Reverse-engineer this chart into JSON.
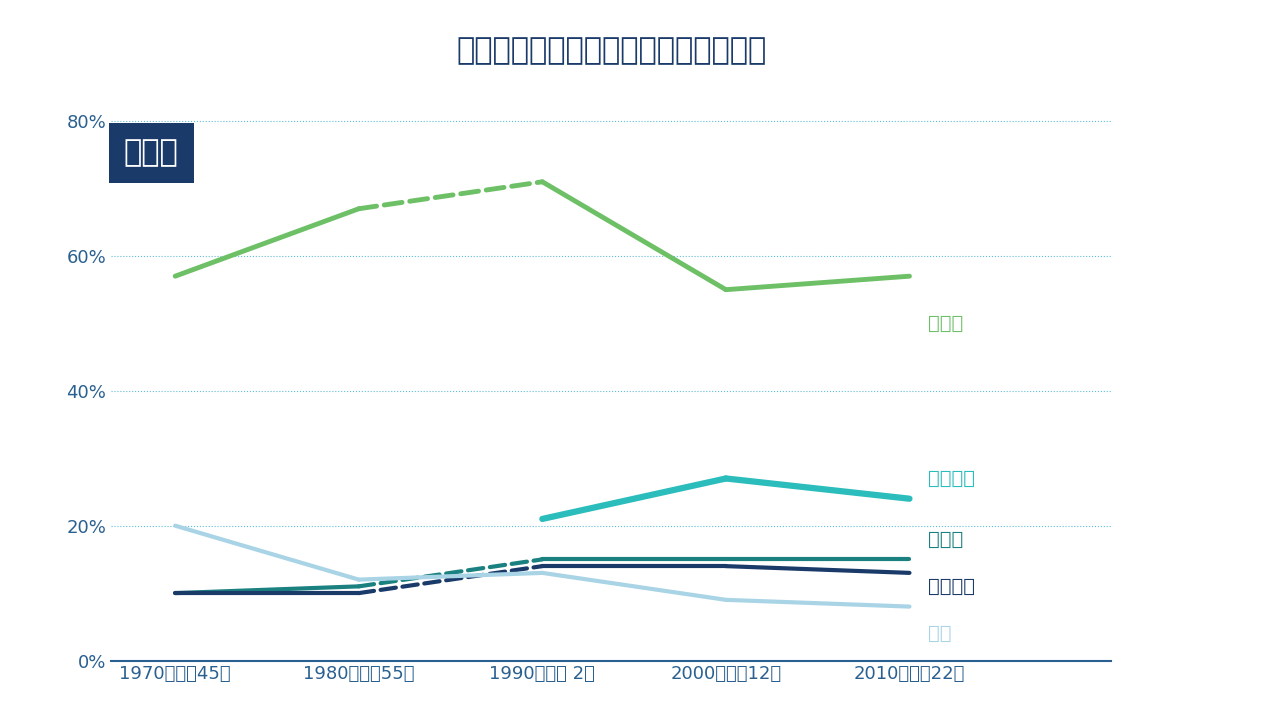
{
  "title": "通勤・通学の利用交通手段別人口割合",
  "subtitle_box": "東京都",
  "x_labels": [
    "1970（昭和45）",
    "1980（昭和55）",
    "1990（平成 2）",
    "2000（平成12）",
    "2010（平成22）"
  ],
  "x_positions": [
    0,
    1,
    2,
    3,
    4
  ],
  "series": [
    {
      "name": "鉄道等",
      "values": [
        57,
        67,
        71,
        55,
        57
      ],
      "color": "#6dc066",
      "linewidth": 3.5,
      "dashed_segments": [
        false,
        true,
        false,
        false
      ]
    },
    {
      "name": "自転車等",
      "values": [
        null,
        null,
        21,
        27,
        24
      ],
      "color": "#2bbcbc",
      "linewidth": 4.5,
      "dashed_segments": [
        false,
        false,
        false,
        false
      ]
    },
    {
      "name": "バス等",
      "values": [
        10,
        11,
        15,
        15,
        15
      ],
      "color": "#1a8080",
      "linewidth": 3.0,
      "dashed_segments": [
        false,
        true,
        false,
        false
      ]
    },
    {
      "name": "自家用車",
      "values": [
        10,
        10,
        14,
        14,
        13
      ],
      "color": "#1a3a6a",
      "linewidth": 3.0,
      "dashed_segments": [
        false,
        true,
        false,
        false
      ]
    },
    {
      "name": "徒歩",
      "values": [
        20,
        12,
        13,
        9,
        8
      ],
      "color": "#a8d4e6",
      "linewidth": 3.0,
      "dashed_segments": [
        false,
        false,
        false,
        false
      ]
    }
  ],
  "label_info": [
    {
      "name": "鉄道等",
      "xi": 4,
      "yi": 50,
      "color": "#6dc066"
    },
    {
      "name": "自転車等",
      "xi": 4,
      "yi": 27,
      "color": "#2bbcbc"
    },
    {
      "name": "バス等",
      "xi": 4,
      "yi": 18,
      "color": "#1a8080"
    },
    {
      "name": "自家用車",
      "xi": 4,
      "yi": 11,
      "color": "#1a3a6a"
    },
    {
      "name": "徒歩",
      "xi": 4,
      "yi": 4,
      "color": "#a8d4e6"
    }
  ],
  "ylim": [
    0,
    85
  ],
  "yticks": [
    0,
    20,
    40,
    60,
    80
  ],
  "ytick_labels": [
    "0%",
    "20%",
    "40%",
    "60%",
    "80%"
  ],
  "background_color": "#ffffff",
  "grid_color": "#4db8d4",
  "title_color": "#1a3a6a",
  "title_fontsize": 22,
  "label_box_bg": "#1a3a6a",
  "label_box_text": "#ffffff",
  "axis_color": "#2a6090",
  "tick_fontsize": 13
}
